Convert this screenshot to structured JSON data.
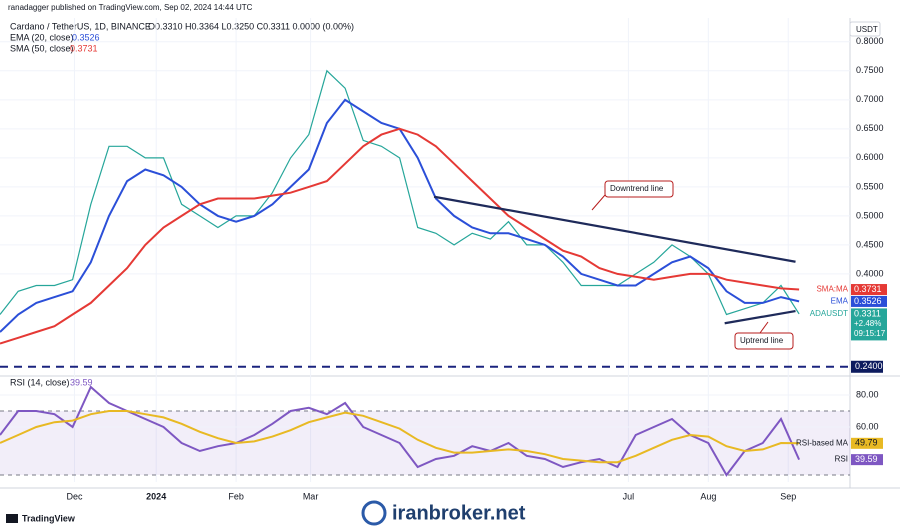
{
  "header": {
    "publisher": "ranadagger published on TradingView.com, Sep 02, 2024 14:44 UTC",
    "symbol": "Cardano / TetherUS, 1D, BINANCE",
    "ohlc": "O0.3310 H0.3364 L0.3250 C0.3311 0.0000 (0.00%)",
    "currency": "USDT",
    "footer": "TradingView",
    "watermark": "iranbroker.net"
  },
  "chart_data": [
    {
      "type": "line",
      "x": [
        0,
        1,
        2,
        3,
        4,
        5,
        6,
        7,
        8,
        9,
        10,
        11,
        12,
        13,
        14,
        15,
        16,
        17,
        18,
        19,
        20,
        21,
        22,
        23,
        24,
        25,
        26,
        27,
        28,
        29,
        30,
        31,
        32,
        33,
        34,
        35,
        36,
        37,
        38,
        39,
        40,
        41,
        42,
        43,
        44
      ],
      "xlim": [
        0,
        46.8
      ],
      "xticks": [
        {
          "value": 4.1,
          "label": "Dec"
        },
        {
          "value": 8.6,
          "label": "2024"
        },
        {
          "value": 13,
          "label": "Feb"
        },
        {
          "value": 17.1,
          "label": "Mar"
        },
        {
          "value": 34.6,
          "label": "Jul"
        },
        {
          "value": 39,
          "label": "Aug"
        },
        {
          "value": 43.4,
          "label": "Sep"
        }
      ],
      "ylim": [
        0.231,
        0.841
      ],
      "yticks": [
        {
          "value": 0.8,
          "label": "0.8000"
        },
        {
          "value": 0.75,
          "label": "0.7500"
        },
        {
          "value": 0.7,
          "label": "0.7000"
        },
        {
          "value": 0.65,
          "label": "0.6500"
        },
        {
          "value": 0.6,
          "label": "0.6000"
        },
        {
          "value": 0.55,
          "label": "0.5500"
        },
        {
          "value": 0.5,
          "label": "0.5000"
        },
        {
          "value": 0.45,
          "label": "0.4500"
        },
        {
          "value": 0.4,
          "label": "0.4000"
        }
      ],
      "series": [
        {
          "name": "ADAUSDT",
          "color": "#26a69a",
          "values": [
            0.33,
            0.37,
            0.38,
            0.38,
            0.39,
            0.52,
            0.62,
            0.62,
            0.6,
            0.6,
            0.52,
            0.5,
            0.48,
            0.5,
            0.5,
            0.54,
            0.6,
            0.64,
            0.75,
            0.72,
            0.63,
            0.62,
            0.6,
            0.48,
            0.47,
            0.45,
            0.47,
            0.46,
            0.49,
            0.45,
            0.45,
            0.42,
            0.38,
            0.38,
            0.38,
            0.4,
            0.42,
            0.45,
            0.43,
            0.4,
            0.33,
            0.34,
            0.35,
            0.38,
            0.3311
          ]
        },
        {
          "name": "EMA (20, close)",
          "tag": "EMA",
          "color": "#2b4fd8",
          "values": [
            0.3,
            0.33,
            0.35,
            0.36,
            0.37,
            0.42,
            0.5,
            0.56,
            0.58,
            0.57,
            0.55,
            0.52,
            0.5,
            0.49,
            0.5,
            0.52,
            0.55,
            0.58,
            0.66,
            0.7,
            0.68,
            0.66,
            0.65,
            0.6,
            0.53,
            0.5,
            0.48,
            0.47,
            0.47,
            0.46,
            0.45,
            0.43,
            0.4,
            0.39,
            0.38,
            0.38,
            0.4,
            0.42,
            0.43,
            0.41,
            0.37,
            0.35,
            0.35,
            0.36,
            0.3526
          ]
        },
        {
          "name": "SMA (50, close)",
          "tag": "SMA:MA",
          "color": "#e53935",
          "values": [
            0.28,
            0.29,
            0.3,
            0.31,
            0.33,
            0.35,
            0.38,
            0.41,
            0.45,
            0.48,
            0.5,
            0.52,
            0.53,
            0.53,
            0.53,
            0.535,
            0.54,
            0.55,
            0.56,
            0.59,
            0.62,
            0.64,
            0.65,
            0.64,
            0.62,
            0.59,
            0.56,
            0.53,
            0.5,
            0.48,
            0.46,
            0.44,
            0.43,
            0.41,
            0.4,
            0.395,
            0.39,
            0.395,
            0.4,
            0.4,
            0.39,
            0.385,
            0.38,
            0.375,
            0.3731
          ]
        }
      ],
      "last_change": "+2.48%",
      "countdown": "09:15:17",
      "level": {
        "value": 0.24,
        "label": "0.2400"
      },
      "trendlines": [
        {
          "name": "Downtrend line",
          "x": [
            23.9,
            43.8
          ],
          "y": [
            0.533,
            0.421
          ]
        },
        {
          "name": "Uptrend line",
          "x": [
            39.9,
            43.8
          ],
          "y": [
            0.315,
            0.336
          ]
        }
      ]
    },
    {
      "type": "line",
      "title": "RSI (14, close)",
      "ylim": [
        25.6,
        89.4
      ],
      "yticks": [
        {
          "value": 80,
          "label": "80.00"
        },
        {
          "value": 60,
          "label": "60.00"
        }
      ],
      "band": [
        30,
        70
      ],
      "series": [
        {
          "name": "RSI",
          "color": "#7e57c2",
          "values": [
            55,
            70,
            70,
            68,
            60,
            85,
            75,
            70,
            65,
            60,
            50,
            45,
            48,
            50,
            55,
            62,
            70,
            72,
            68,
            75,
            60,
            55,
            50,
            35,
            40,
            42,
            48,
            45,
            50,
            42,
            40,
            35,
            38,
            40,
            35,
            55,
            60,
            65,
            55,
            50,
            30,
            45,
            50,
            65,
            39.59
          ]
        },
        {
          "name": "RSI-based MA",
          "color": "#e8b923",
          "values": [
            50,
            55,
            60,
            63,
            64,
            68,
            70,
            70,
            68,
            66,
            62,
            57,
            53,
            50,
            51,
            54,
            58,
            63,
            66,
            69,
            67,
            63,
            59,
            52,
            47,
            44,
            44,
            45,
            46,
            45,
            43,
            40,
            39,
            38,
            38,
            42,
            47,
            52,
            55,
            54,
            48,
            45,
            46,
            50,
            49.79
          ]
        }
      ]
    }
  ]
}
